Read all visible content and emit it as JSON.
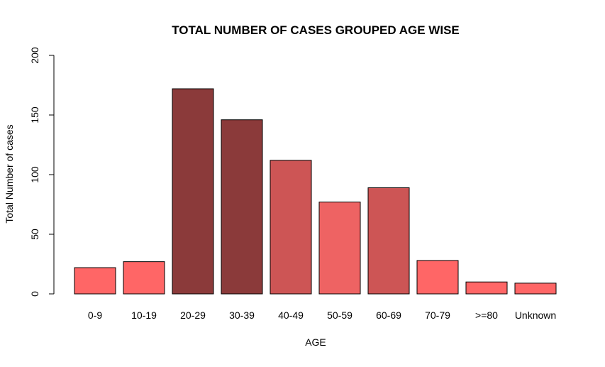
{
  "chart_data": {
    "type": "bar",
    "title": "TOTAL NUMBER OF CASES GROUPED AGE WISE",
    "xlabel": "AGE",
    "ylabel": "Total Number of cases",
    "categories": [
      "0-9",
      "10-19",
      "20-29",
      "30-39",
      "40-49",
      "50-59",
      "60-69",
      "70-79",
      ">=80",
      "Unknown"
    ],
    "values": [
      22,
      27,
      172,
      146,
      112,
      77,
      89,
      28,
      10,
      9
    ],
    "bar_colors": [
      "#FF6666",
      "#FF6666",
      "#8B3A3A",
      "#8B3A3A",
      "#CD5555",
      "#EE6363",
      "#CD5555",
      "#FF6666",
      "#FF6666",
      "#FF6666"
    ],
    "yticks": [
      "0",
      "50",
      "100",
      "150",
      "200"
    ],
    "ylim": [
      0,
      200
    ],
    "grid": false,
    "legend": "none"
  }
}
